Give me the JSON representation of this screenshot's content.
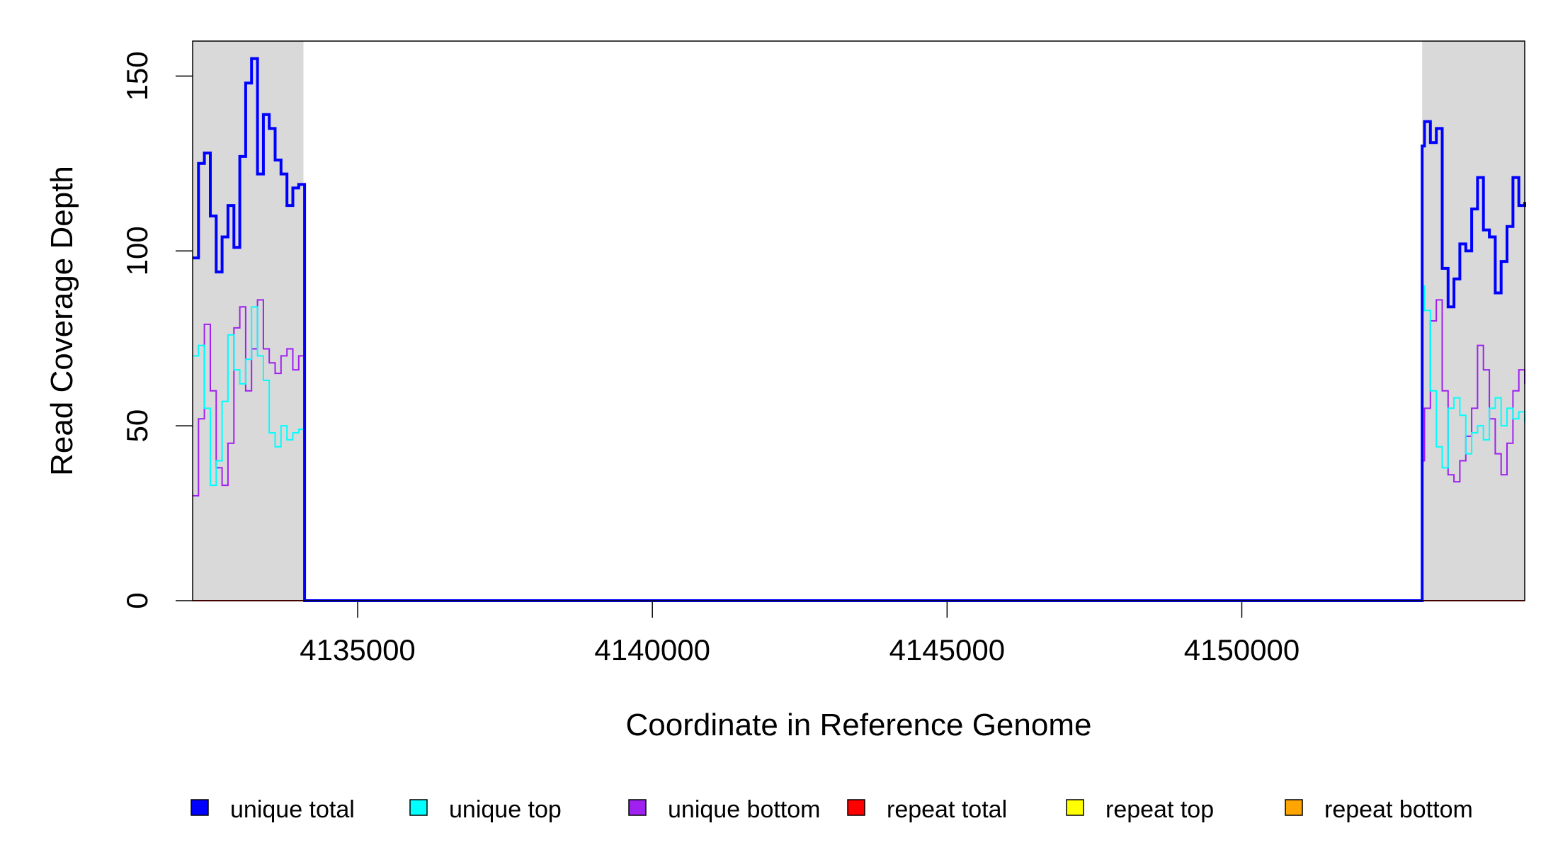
{
  "chart_data": {
    "type": "line",
    "title": "",
    "xlabel": "Coordinate in Reference Genome",
    "ylabel": "Read Coverage Depth",
    "xlim": [
      4132200,
      4154800
    ],
    "ylim": [
      0,
      160
    ],
    "x_ticks": [
      4135000,
      4140000,
      4145000,
      4150000
    ],
    "x_tick_labels": [
      "4135000",
      "4140000",
      "4145000",
      "4150000"
    ],
    "y_ticks": [
      0,
      50,
      100,
      150
    ],
    "y_tick_labels": [
      "0",
      "50",
      "100",
      "150"
    ],
    "grid": false,
    "legend_position": "bottom",
    "shaded_regions": [
      {
        "x0": 4132200,
        "x1": 4134080,
        "color": "#d9d9d9"
      },
      {
        "x0": 4153060,
        "x1": 4154800,
        "color": "#d9d9d9"
      }
    ],
    "legend": [
      {
        "label": "unique total",
        "color": "#0000ff"
      },
      {
        "label": "unique top",
        "color": "#00ffff"
      },
      {
        "label": "unique bottom",
        "color": "#a020f0"
      },
      {
        "label": "repeat total",
        "color": "#ff0000"
      },
      {
        "label": "repeat top",
        "color": "#ffff00"
      },
      {
        "label": "repeat bottom",
        "color": "#ffa500"
      }
    ],
    "series": [
      {
        "name": "unique total",
        "color": "#0000ff",
        "stroke_width": 4,
        "x": [
          4132200,
          4132300,
          4132400,
          4132500,
          4132600,
          4132700,
          4132800,
          4132900,
          4133000,
          4133100,
          4133200,
          4133300,
          4133400,
          4133500,
          4133600,
          4133700,
          4133800,
          4133900,
          4134000,
          4134080,
          4134100,
          4153000,
          4153060,
          4153100,
          4153200,
          4153300,
          4153400,
          4153500,
          4153600,
          4153700,
          4153800,
          4153900,
          4154000,
          4154100,
          4154200,
          4154300,
          4154400,
          4154500,
          4154600,
          4154700,
          4154800
        ],
        "y": [
          98,
          125,
          128,
          110,
          94,
          104,
          113,
          101,
          127,
          148,
          155,
          122,
          139,
          135,
          126,
          122,
          113,
          118,
          119,
          119,
          0,
          0,
          130,
          137,
          131,
          135,
          95,
          84,
          92,
          102,
          100,
          112,
          121,
          106,
          104,
          88,
          97,
          107,
          121,
          113,
          114
        ]
      },
      {
        "name": "unique top",
        "color": "#00ffff",
        "stroke_width": 2,
        "x": [
          4132200,
          4132300,
          4132400,
          4132500,
          4132600,
          4132700,
          4132800,
          4132900,
          4133000,
          4133100,
          4133200,
          4133300,
          4133400,
          4133500,
          4133600,
          4133700,
          4133800,
          4133900,
          4134000,
          4134080,
          4134100,
          4153000,
          4153060,
          4153100,
          4153200,
          4153300,
          4153400,
          4153500,
          4153600,
          4153700,
          4153800,
          4153900,
          4154000,
          4154100,
          4154200,
          4154300,
          4154400,
          4154500,
          4154600,
          4154700,
          4154800
        ],
        "y": [
          70,
          73,
          55,
          33,
          40,
          57,
          76,
          66,
          62,
          69,
          84,
          70,
          63,
          48,
          44,
          50,
          46,
          48,
          49,
          49,
          0,
          0,
          90,
          83,
          60,
          44,
          38,
          55,
          58,
          53,
          42,
          48,
          50,
          46,
          55,
          58,
          50,
          55,
          52,
          54,
          51
        ]
      },
      {
        "name": "unique bottom",
        "color": "#a020f0",
        "stroke_width": 2,
        "x": [
          4132200,
          4132300,
          4132400,
          4132500,
          4132600,
          4132700,
          4132800,
          4132900,
          4133000,
          4133100,
          4133200,
          4133300,
          4133400,
          4133500,
          4133600,
          4133700,
          4133800,
          4133900,
          4134000,
          4134080,
          4134100,
          4153000,
          4153060,
          4153100,
          4153200,
          4153300,
          4153400,
          4153500,
          4153600,
          4153700,
          4153800,
          4153900,
          4154000,
          4154100,
          4154200,
          4154300,
          4154400,
          4154500,
          4154600,
          4154700,
          4154800
        ],
        "y": [
          30,
          52,
          79,
          60,
          38,
          33,
          45,
          78,
          84,
          60,
          72,
          86,
          72,
          68,
          65,
          70,
          72,
          66,
          70,
          70,
          0,
          0,
          40,
          55,
          80,
          86,
          60,
          36,
          34,
          40,
          47,
          55,
          73,
          66,
          52,
          42,
          36,
          45,
          60,
          66,
          62
        ]
      },
      {
        "name": "repeat total",
        "color": "#ff0000",
        "stroke_width": 2,
        "x": [
          4132200,
          4154800
        ],
        "y": [
          0,
          0
        ]
      },
      {
        "name": "repeat top",
        "color": "#ffff00",
        "stroke_width": 2,
        "x": [
          4132200,
          4154800
        ],
        "y": [
          0,
          0
        ]
      },
      {
        "name": "repeat bottom",
        "color": "#ffa500",
        "stroke_width": 2,
        "x": [
          4132200,
          4154800
        ],
        "y": [
          0,
          0
        ]
      }
    ]
  }
}
